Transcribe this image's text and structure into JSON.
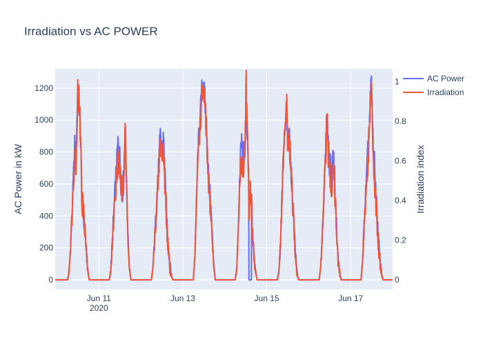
{
  "chart_data": {
    "type": "line",
    "title": "Irradiation vs AC POWER",
    "ylabel": "AC Power in kW",
    "y2label": "Irradiation index",
    "ylim": [
      -60,
      1320
    ],
    "y2lim": [
      -0.0484,
      1.0645
    ],
    "y_ticks": [
      0,
      200,
      400,
      600,
      800,
      1000,
      1200
    ],
    "y2_ticks": [
      0,
      0.2,
      0.4,
      0.6,
      0.8,
      1
    ],
    "x_start": "2020-06-09T23:00",
    "x_end": "2020-06-18T00:00",
    "x_ticks": [
      {
        "date": "2020-06-11",
        "label": "Jun 11",
        "sublabel": "2020"
      },
      {
        "date": "2020-06-13",
        "label": "Jun 13",
        "sublabel": ""
      },
      {
        "date": "2020-06-15",
        "label": "Jun 15",
        "sublabel": ""
      },
      {
        "date": "2020-06-17",
        "label": "Jun 17",
        "sublabel": ""
      }
    ],
    "grid": true,
    "legend_position": "top-right",
    "series": [
      {
        "name": "AC Power",
        "color": "#636efa",
        "axis": "y",
        "days": [
          {
            "date": "2020-06-10",
            "start": "06:00",
            "end": "18:30",
            "peak": 1200,
            "dip": null,
            "profile": [
              0,
              40,
              180,
              380,
              600,
              830,
              780,
              1200,
              1100,
              900,
              480,
              420,
              300,
              170,
              50,
              0
            ]
          },
          {
            "date": "2020-06-11",
            "start": "06:00",
            "end": "18:15",
            "peak": 990,
            "dip": null,
            "profile": [
              0,
              60,
              230,
              400,
              560,
              700,
              850,
              800,
              640,
              560,
              620,
              990,
              600,
              300,
              80,
              0
            ]
          },
          {
            "date": "2020-06-12",
            "start": "06:00",
            "end": "18:15",
            "peak": 920,
            "dip": null,
            "profile": [
              0,
              70,
              230,
              400,
              560,
              740,
              910,
              800,
              880,
              600,
              400,
              220,
              100,
              40,
              0
            ]
          },
          {
            "date": "2020-06-13",
            "start": "06:00",
            "end": "18:30",
            "peak": 1250,
            "dip": null,
            "profile": [
              0,
              150,
              480,
              820,
              960,
              1100,
              1250,
              1150,
              1050,
              800,
              600,
              500,
              300,
              120,
              0
            ]
          },
          {
            "date": "2020-06-14",
            "start": "06:00",
            "end": "18:30",
            "peak": 1040,
            "dip": [
              "13:45",
              "15:15"
            ],
            "profile": [
              0,
              80,
              330,
              700,
              880,
              760,
              800,
              1040,
              820,
              500,
              650,
              300,
              150,
              60,
              0
            ]
          },
          {
            "date": "2020-06-15",
            "start": "06:00",
            "end": "18:15",
            "peak": 1050,
            "dip": null,
            "profile": [
              0,
              50,
              190,
              480,
              760,
              900,
              1050,
              850,
              880,
              700,
              500,
              350,
              150,
              40,
              0
            ]
          },
          {
            "date": "2020-06-16",
            "start": "06:00",
            "end": "18:30",
            "peak": 1050,
            "dip": null,
            "profile": [
              0,
              80,
              300,
              520,
              760,
              1050,
              800,
              720,
              620,
              800,
              620,
              350,
              150,
              60,
              0
            ]
          },
          {
            "date": "2020-06-17",
            "start": "06:00",
            "end": "18:30",
            "peak": 1240,
            "dip": null,
            "profile": [
              0,
              150,
              400,
              600,
              800,
              1000,
              1240,
              900,
              700,
              500,
              300,
              150,
              50,
              0
            ]
          }
        ]
      },
      {
        "name": "Irradiation",
        "color": "#ef553b",
        "axis": "y2",
        "days": [
          {
            "date": "2020-06-10",
            "start": "06:00",
            "end": "18:30",
            "peak": 0.95,
            "dip": null,
            "profile": [
              0,
              0.03,
              0.16,
              0.3,
              0.5,
              0.62,
              0.6,
              0.95,
              0.9,
              0.72,
              0.4,
              0.35,
              0.25,
              0.14,
              0.04,
              0
            ]
          },
          {
            "date": "2020-06-11",
            "start": "06:00",
            "end": "18:15",
            "peak": 0.75,
            "dip": null,
            "profile": [
              0,
              0.05,
              0.18,
              0.3,
              0.42,
              0.55,
              0.6,
              0.58,
              0.5,
              0.45,
              0.5,
              0.75,
              0.45,
              0.22,
              0.06,
              0
            ]
          },
          {
            "date": "2020-06-12",
            "start": "06:00",
            "end": "18:15",
            "peak": 0.71,
            "dip": null,
            "profile": [
              0,
              0.05,
              0.18,
              0.32,
              0.44,
              0.56,
              0.71,
              0.62,
              0.65,
              0.46,
              0.3,
              0.16,
              0.07,
              0.03,
              0
            ]
          },
          {
            "date": "2020-06-13",
            "start": "06:00",
            "end": "18:30",
            "peak": 0.98,
            "dip": null,
            "profile": [
              0,
              0.12,
              0.36,
              0.62,
              0.74,
              0.85,
              0.98,
              0.9,
              0.8,
              0.6,
              0.46,
              0.36,
              0.22,
              0.08,
              0
            ]
          },
          {
            "date": "2020-06-14",
            "start": "06:00",
            "end": "18:30",
            "peak": 1.02,
            "dip": null,
            "profile": [
              0,
              0.06,
              0.25,
              0.5,
              0.62,
              0.55,
              0.6,
              1.02,
              0.6,
              0.36,
              0.46,
              0.22,
              0.1,
              0.04,
              0
            ]
          },
          {
            "date": "2020-06-15",
            "start": "06:00",
            "end": "18:15",
            "peak": 0.9,
            "dip": null,
            "profile": [
              0,
              0.04,
              0.15,
              0.38,
              0.6,
              0.72,
              0.9,
              0.68,
              0.7,
              0.55,
              0.38,
              0.26,
              0.1,
              0.03,
              0
            ]
          },
          {
            "date": "2020-06-16",
            "start": "06:00",
            "end": "18:30",
            "peak": 0.8,
            "dip": null,
            "profile": [
              0,
              0.06,
              0.22,
              0.4,
              0.58,
              0.8,
              0.62,
              0.55,
              0.46,
              0.6,
              0.46,
              0.26,
              0.1,
              0.04,
              0
            ]
          },
          {
            "date": "2020-06-17",
            "start": "06:00",
            "end": "18:30",
            "peak": 0.98,
            "dip": null,
            "profile": [
              0,
              0.12,
              0.3,
              0.45,
              0.6,
              0.78,
              0.98,
              0.7,
              0.5,
              0.36,
              0.22,
              0.1,
              0.04,
              0
            ]
          }
        ]
      }
    ]
  }
}
